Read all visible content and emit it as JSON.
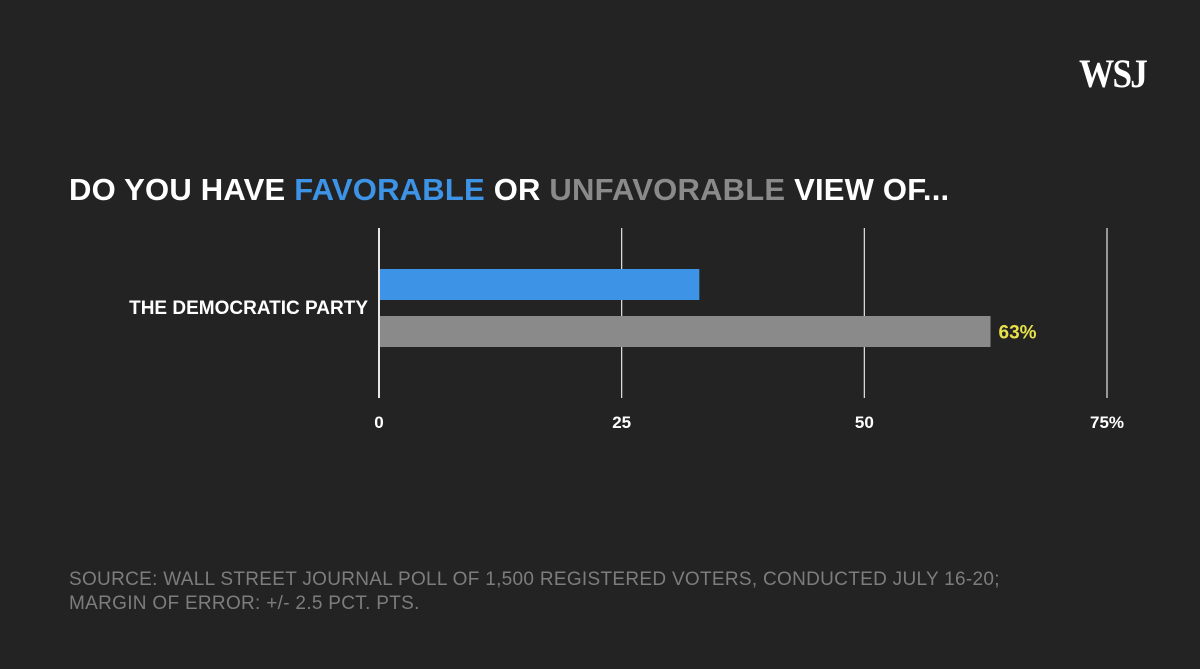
{
  "logo": "WSJ",
  "title": {
    "part1": "DO YOU HAVE ",
    "favorable": "FAVORABLE",
    "part2": " OR ",
    "unfavorable": "UNFAVORABLE",
    "part3": " VIEW OF..."
  },
  "chart_data": {
    "type": "bar",
    "orientation": "horizontal",
    "categories": [
      "THE DEMOCRATIC PARTY"
    ],
    "series": [
      {
        "name": "FAVORABLE",
        "values": [
          33
        ],
        "color": "#3d94e6"
      },
      {
        "name": "UNFAVORABLE",
        "values": [
          63
        ],
        "color": "#8a8a8a"
      }
    ],
    "data_labels": [
      "",
      "63%"
    ],
    "data_label_color": "#e8e04a",
    "xlim": [
      0,
      75
    ],
    "ticks": [
      "0",
      "25",
      "50",
      "75%"
    ],
    "tick_values": [
      0,
      25,
      50,
      75
    ],
    "grid": true
  },
  "source": {
    "line1": "SOURCE: WALL STREET JOURNAL POLL OF 1,500 REGISTERED VOTERS, CONDUCTED JULY 16-20;",
    "line2": "MARGIN OF ERROR: +/- 2.5 PCT. PTS."
  }
}
